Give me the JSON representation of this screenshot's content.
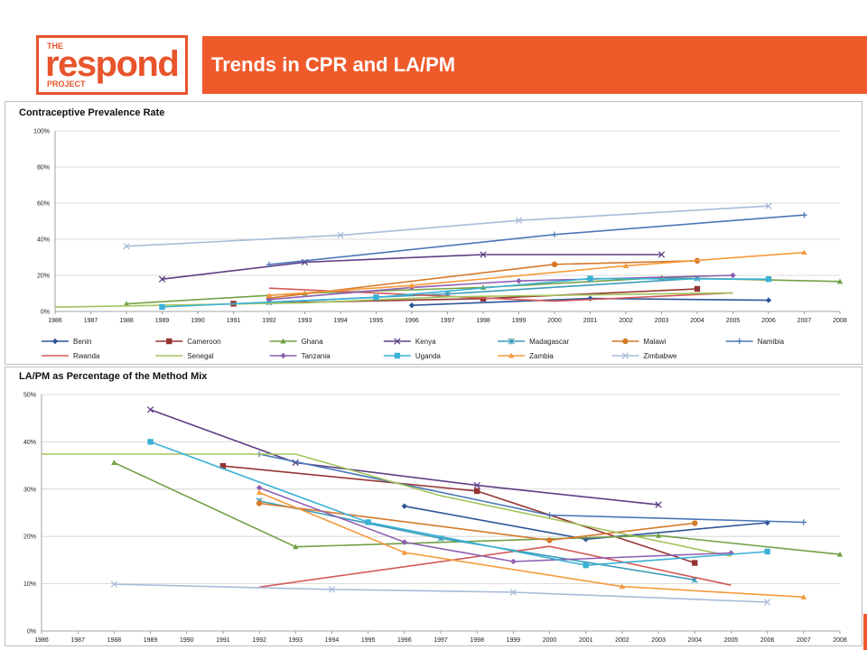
{
  "header": {
    "logo_the": "THE",
    "logo_main": "respond",
    "logo_project": "PROJECT",
    "title": "Trends in CPR and LA/PM",
    "accent_color": "#ef5a2b"
  },
  "x_years": [
    1986,
    1987,
    1988,
    1989,
    1990,
    1991,
    1992,
    1993,
    1994,
    1995,
    1996,
    1997,
    1998,
    1999,
    2000,
    2001,
    2002,
    2003,
    2004,
    2005,
    2006,
    2007,
    2008
  ],
  "series_styles": [
    {
      "name": "Benin",
      "color": "#2e5597",
      "marker": "diamond"
    },
    {
      "name": "Cameroon",
      "color": "#943432",
      "marker": "square"
    },
    {
      "name": "Ghana",
      "color": "#72a046",
      "marker": "triangle"
    },
    {
      "name": "Kenya",
      "color": "#5e3f86",
      "marker": "x"
    },
    {
      "name": "Madagascar",
      "color": "#3c9cb8",
      "marker": "star"
    },
    {
      "name": "Malawi",
      "color": "#d57a2b",
      "marker": "circle"
    },
    {
      "name": "Namibia",
      "color": "#4a78b8",
      "marker": "plus"
    },
    {
      "name": "Rwanda",
      "color": "#d25a58",
      "marker": "none"
    },
    {
      "name": "Senegal",
      "color": "#a3c35b",
      "marker": "none"
    },
    {
      "name": "Tanzania",
      "color": "#8e5fb0",
      "marker": "diamond"
    },
    {
      "name": "Uganda",
      "color": "#3ab1d5",
      "marker": "square"
    },
    {
      "name": "Zambia",
      "color": "#f59a3c",
      "marker": "triangle"
    },
    {
      "name": "Zimbabwe",
      "color": "#a8bbd8",
      "marker": "x"
    }
  ],
  "chart_data": [
    {
      "type": "line",
      "title": "Contraceptive Prevalence Rate",
      "xlabel": "",
      "ylabel": "",
      "ylim": [
        0,
        100
      ],
      "yticks": [
        0,
        20,
        40,
        60,
        80,
        100
      ],
      "ytick_labels": [
        "0%",
        "20%",
        "40%",
        "60%",
        "80%",
        "100%"
      ],
      "grid": true,
      "legend_placement": "bottom",
      "series": [
        {
          "name": "Benin",
          "points": [
            [
              1996,
              3.4
            ],
            [
              2001,
              7.2
            ],
            [
              2006,
              6.2
            ]
          ]
        },
        {
          "name": "Cameroon",
          "points": [
            [
              1991,
              4.3
            ],
            [
              1998,
              7.1
            ],
            [
              2004,
              12.5
            ]
          ]
        },
        {
          "name": "Ghana",
          "points": [
            [
              1988,
              4.2
            ],
            [
              1993,
              10.1
            ],
            [
              1998,
              13.3
            ],
            [
              2003,
              18.7
            ],
            [
              2008,
              16.6
            ]
          ]
        },
        {
          "name": "Kenya",
          "points": [
            [
              1989,
              17.9
            ],
            [
              1993,
              27.3
            ],
            [
              1998,
              31.5
            ],
            [
              2003,
              31.5
            ]
          ]
        },
        {
          "name": "Madagascar",
          "points": [
            [
              1992,
              5.1
            ],
            [
              1997,
              9.7
            ],
            [
              2004,
              18.3
            ]
          ]
        },
        {
          "name": "Malawi",
          "points": [
            [
              1992,
              7.4
            ],
            [
              2000,
              26.1
            ],
            [
              2004,
              28.1
            ]
          ]
        },
        {
          "name": "Namibia",
          "points": [
            [
              1992,
              26.0
            ],
            [
              2000,
              42.6
            ],
            [
              2007,
              53.4
            ]
          ]
        },
        {
          "name": "Rwanda",
          "points": [
            [
              1992,
              12.9
            ],
            [
              2000,
              5.7
            ],
            [
              2005,
              10.3
            ]
          ]
        },
        {
          "name": "Senegal",
          "points": [
            [
              1986,
              2.4
            ],
            [
              1993,
              4.8
            ],
            [
              1997,
              8.1
            ],
            [
              2005,
              10.3
            ]
          ]
        },
        {
          "name": "Tanzania",
          "points": [
            [
              1992,
              6.6
            ],
            [
              1996,
              13.3
            ],
            [
              1999,
              16.9
            ],
            [
              2005,
              20.0
            ]
          ]
        },
        {
          "name": "Uganda",
          "points": [
            [
              1989,
              2.5
            ],
            [
              1995,
              7.8
            ],
            [
              2001,
              18.2
            ],
            [
              2006,
              17.9
            ]
          ]
        },
        {
          "name": "Zambia",
          "points": [
            [
              1992,
              8.9
            ],
            [
              1996,
              14.4
            ],
            [
              2002,
              25.3
            ],
            [
              2007,
              32.7
            ]
          ]
        },
        {
          "name": "Zimbabwe",
          "points": [
            [
              1988,
              36.1
            ],
            [
              1994,
              42.2
            ],
            [
              1999,
              50.4
            ],
            [
              2006,
              58.4
            ]
          ]
        }
      ]
    },
    {
      "type": "line",
      "title": "LA/PM as Percentage of the Method Mix",
      "xlabel": "",
      "ylabel": "",
      "ylim": [
        0,
        50
      ],
      "yticks": [
        0,
        10,
        20,
        30,
        40,
        50
      ],
      "ytick_labels": [
        "0%",
        "10%",
        "20%",
        "30%",
        "40%",
        "50%"
      ],
      "grid": true,
      "legend_placement": "none",
      "series": [
        {
          "name": "Benin",
          "points": [
            [
              1996,
              26.4
            ],
            [
              2001,
              19.4
            ],
            [
              2006,
              22.9
            ]
          ]
        },
        {
          "name": "Cameroon",
          "points": [
            [
              1991,
              34.9
            ],
            [
              1998,
              29.6
            ],
            [
              2004,
              14.4
            ]
          ]
        },
        {
          "name": "Ghana",
          "points": [
            [
              1988,
              35.6
            ],
            [
              1993,
              17.8
            ],
            [
              2003,
              20.2
            ],
            [
              2008,
              16.2
            ]
          ]
        },
        {
          "name": "Kenya",
          "points": [
            [
              1989,
              46.8
            ],
            [
              1993,
              35.6
            ],
            [
              1998,
              30.8
            ],
            [
              2003,
              26.7
            ]
          ]
        },
        {
          "name": "Madagascar",
          "points": [
            [
              1992,
              27.5
            ],
            [
              1997,
              19.6
            ],
            [
              2004,
              10.8
            ]
          ]
        },
        {
          "name": "Malawi",
          "points": [
            [
              1992,
              27.0
            ],
            [
              2000,
              19.2
            ],
            [
              2004,
              22.8
            ]
          ]
        },
        {
          "name": "Namibia",
          "points": [
            [
              1992,
              37.4
            ],
            [
              2000,
              24.5
            ],
            [
              2007,
              23.0
            ]
          ]
        },
        {
          "name": "Rwanda",
          "points": [
            [
              1992,
              9.3
            ],
            [
              2000,
              17.9
            ],
            [
              2005,
              9.7
            ]
          ]
        },
        {
          "name": "Senegal",
          "points": [
            [
              1986,
              37.4
            ],
            [
              1993,
              37.4
            ],
            [
              1997,
              28.6
            ],
            [
              2005,
              15.8
            ]
          ]
        },
        {
          "name": "Tanzania",
          "points": [
            [
              1992,
              30.3
            ],
            [
              1996,
              18.8
            ],
            [
              1999,
              14.7
            ],
            [
              2005,
              16.5
            ]
          ]
        },
        {
          "name": "Uganda",
          "points": [
            [
              1989,
              40.0
            ],
            [
              1995,
              23.0
            ],
            [
              2001,
              13.9
            ],
            [
              2006,
              16.8
            ]
          ]
        },
        {
          "name": "Zambia",
          "points": [
            [
              1992,
              29.3
            ],
            [
              1996,
              16.6
            ],
            [
              2002,
              9.4
            ],
            [
              2007,
              7.2
            ]
          ]
        },
        {
          "name": "Zimbabwe",
          "points": [
            [
              1988,
              9.9
            ],
            [
              1994,
              8.8
            ],
            [
              1999,
              8.2
            ],
            [
              2006,
              6.1
            ]
          ]
        }
      ]
    }
  ]
}
